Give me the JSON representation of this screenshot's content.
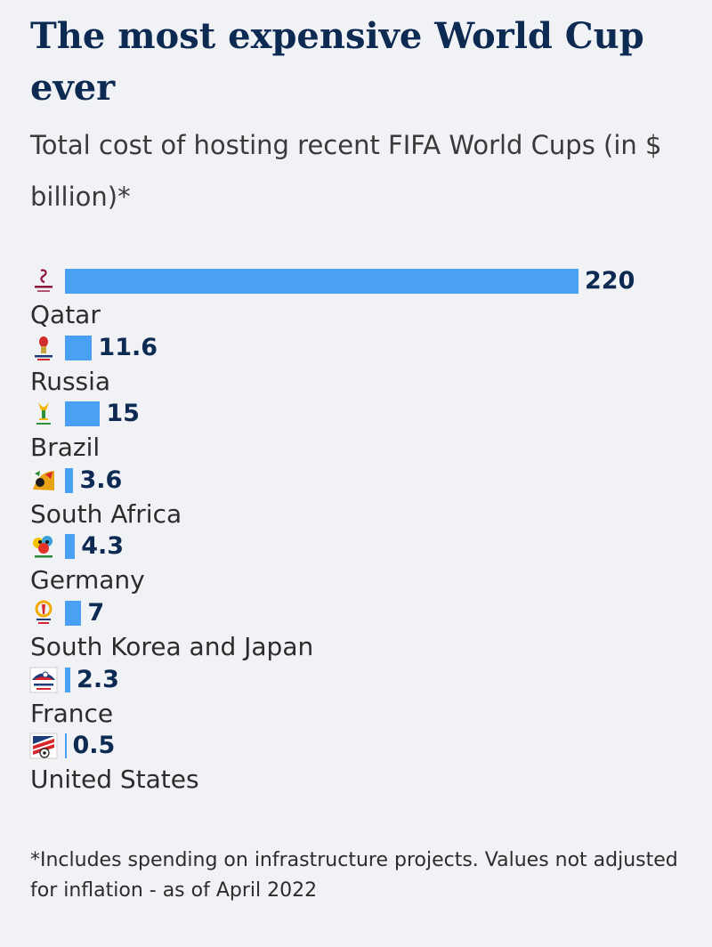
{
  "chart_data": {
    "type": "bar",
    "orientation": "horizontal",
    "title": "The most expensive World Cup ever",
    "subtitle": "Total cost of hosting recent FIFA World Cups (in $ billion)*",
    "categories": [
      "Qatar",
      "Russia",
      "Brazil",
      "South Africa",
      "Germany",
      "South Korea and Japan",
      "France",
      "United States"
    ],
    "values": [
      220,
      11.6,
      15,
      3.6,
      4.3,
      7,
      2.3,
      0.5
    ],
    "value_labels": [
      "220",
      "11.6",
      "15",
      "3.6",
      "4.3",
      "7",
      "2.3",
      "0.5"
    ],
    "xlim": [
      0,
      220
    ],
    "grid": false,
    "legend": "none",
    "bar_color": "#4aa0f4",
    "logo_icons": [
      "qatar-2022-logo-icon",
      "russia-2018-logo-icon",
      "brazil-2014-logo-icon",
      "south-africa-2010-logo-icon",
      "germany-2006-logo-icon",
      "korea-japan-2002-logo-icon",
      "france-1998-logo-icon",
      "usa-1994-logo-icon"
    ],
    "footnote": "*Includes spending on infrastructure projects. Values not adjusted for inflation - as of April 2022"
  },
  "colors": {
    "background": "#f1f2f5",
    "title": "#0d2a52",
    "bar": "#4aa0f4"
  }
}
